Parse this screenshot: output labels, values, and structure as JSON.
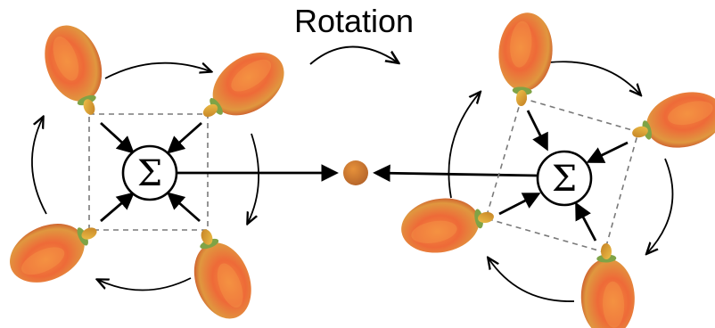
{
  "title": "Rotation",
  "sum_symbol": "Σ",
  "colors": {
    "lobe_inner": "#f06b3a",
    "lobe_mid": "#e9a13f",
    "lobe_edge": "#c9552b",
    "ring": "#7fa346",
    "stub": "#d9a32e",
    "center_dot": "#c8752d",
    "dash": "#7a7a7a",
    "stroke": "#000000"
  },
  "panels": [
    {
      "id": "left",
      "emitters": 4,
      "state": "unrotated"
    },
    {
      "id": "right",
      "emitters": 4,
      "state": "rotated"
    }
  ]
}
